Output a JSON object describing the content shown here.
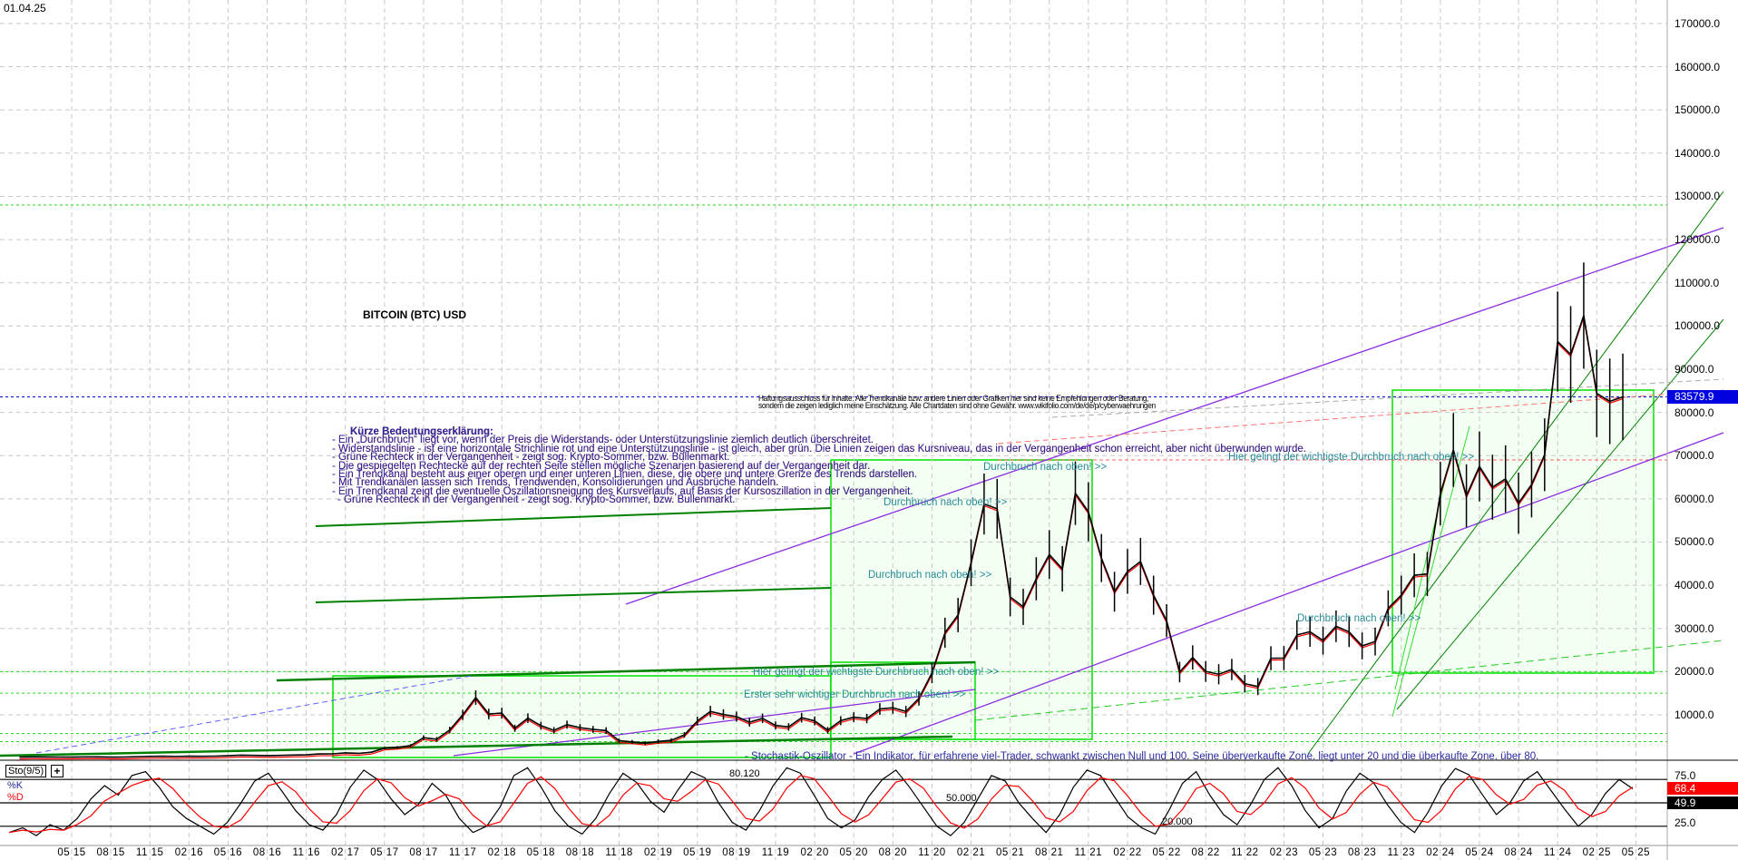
{
  "header": {
    "date": "01.04.25",
    "title": "BITCOIN (BTC) USD"
  },
  "legend": {
    "title": "Kürze Bedeutungserklärung:",
    "lines": [
      "- Ein „Durchbruch“ liegt vor, wenn der Preis die Widerstands- oder Unterstützungslinie ziemlich deutlich überschreitet.",
      "- Widerstandslinie - ist eine horizontale Strichlinie rot und eine Unterstützungslinie - ist gleich, aber grün. Die Linien zeigen das Kursniveau, das in der Vergangenheit schon erreicht, aber nicht überwunden wurde.",
      "- Grüne Rechteck in der Vergangenheit - zeigt sog. Krypto-Sommer, bzw. Bullenmarkt.",
      "- Die gespiegelten Rechtecke auf der rechten Seite stellen mögliche Szenarien basierend auf der Vergangenheit dar.",
      "- Ein Trendkanal besteht aus einer oberen und einer unteren Linien, diese, die obere und untere Grenze des Trends darstellen.",
      "- Mit Trendkanälen lassen sich Trends, Trendwenden, Konsolidierungen und Ausbrüche handeln.",
      "- Ein Trendkanal zeigt die eventuelle Oszillationsneigung des Kursverlaufs, auf Basis der Kursoszillation in der Vergangenheit.",
      "- Grüne Rechteck in der Vergangenheit - zeigt sog. Krypto-Sommer, bzw. Bullenmarkt."
    ]
  },
  "disclaimer": [
    "Haftungsausschluss für Inhalte: Alle Trendkanäle bzw. andere Linien oder Grafiken hier sind keine Empfehlungen oder Beratung,",
    "sondern die zeigen lediglich meine  Einschätzung. Alle Chartdaten sind ohne Gewähr.  www.wikifolio.com/de/de/p/cyberwaehrungen"
  ],
  "annotations": {
    "breakout": "Durchbruch nach oben! >>",
    "key_breakout": "Hier gelingt der wichtigste Durchbruch nach oben! >>",
    "first_breakout": "Erster sehr wichtiger Durchbruch nach oben! >>"
  },
  "stochastic": {
    "name": "Sto(9/5)",
    "plus": "+",
    "k_label": "%K",
    "d_label": "%D",
    "description": "- Stochastik-Oszillator - Ein Indikator, für erfahrene viel-Trader, schwankt zwischen Null und 100. Seine überverkaufte Zone, liegt unter 20 und die überkaufte Zone, über 80.",
    "level_high": "80.120",
    "level_mid": "50.000",
    "level_low": "20.000",
    "axis_labels": [
      "75.0",
      "25.0"
    ],
    "last_k": "68.4",
    "last_d": "49.9",
    "colors": {
      "k": "#000000",
      "d": "#ff0000"
    },
    "k_values": [
      12,
      18,
      8,
      22,
      15,
      30,
      55,
      72,
      60,
      85,
      90,
      70,
      45,
      30,
      20,
      10,
      25,
      50,
      78,
      88,
      65,
      40,
      22,
      15,
      35,
      70,
      92,
      80,
      55,
      35,
      48,
      75,
      60,
      30,
      12,
      20,
      45,
      85,
      95,
      70,
      40,
      20,
      10,
      30,
      62,
      88,
      76,
      52,
      38,
      66,
      90,
      82,
      50,
      25,
      15,
      40,
      72,
      95,
      88,
      60,
      30,
      18,
      28,
      58,
      80,
      92,
      70,
      45,
      20,
      8,
      25,
      55,
      85,
      78,
      50,
      30,
      12,
      35,
      70,
      92,
      85,
      58,
      32,
      18,
      10,
      40,
      75,
      90,
      60,
      35,
      22,
      48,
      80,
      95,
      72,
      40,
      18,
      30,
      65,
      88,
      76,
      48,
      25,
      12,
      38,
      72,
      94,
      86,
      60,
      35,
      50,
      78,
      90,
      66,
      42,
      20,
      35,
      62,
      80,
      68
    ]
  },
  "axis": {
    "last_price": "83579.9",
    "y_labels": [
      "10000.0",
      "20000.0",
      "30000.0",
      "40000.0",
      "50000.0",
      "60000.0",
      "70000.0",
      "80000.0",
      "90000.0",
      "100000.0",
      "110000.0",
      "120000.0",
      "130000.0",
      "140000.0",
      "150000.0",
      "160000.0",
      "170000.0"
    ],
    "x_labels": [
      "05 15",
      "08 15",
      "11 15",
      "02 16",
      "05 16",
      "08 16",
      "11 16",
      "02 17",
      "05 17",
      "08 17",
      "11 17",
      "02 18",
      "05 18",
      "08 18",
      "11 18",
      "02 19",
      "05 19",
      "08 19",
      "11 19",
      "02 20",
      "05 20",
      "08 20",
      "11 20",
      "02 21",
      "05 21",
      "08 21",
      "11 21",
      "02 22",
      "05 22",
      "08 22",
      "11 22",
      "02 23",
      "05 23",
      "08 23",
      "11 23",
      "02 24",
      "05 24",
      "08 24",
      "11 24",
      "02 25",
      "05 25"
    ]
  },
  "chart_data": {
    "type": "line",
    "title": "BITCOIN (BTC) USD",
    "x_start": "2015-01",
    "x_step": "month",
    "ylim": [
      0,
      175000
    ],
    "grid": true,
    "colors": {
      "price": "#000000",
      "price_down": "#ff0000",
      "last_price": "#0000e0",
      "channel": "#8a2be2",
      "trend": "#008000",
      "bull_box": "#00e000"
    },
    "values": [
      218,
      254,
      244,
      236,
      230,
      263,
      284,
      230,
      236,
      314,
      378,
      430,
      369,
      437,
      416,
      448,
      531,
      673,
      624,
      575,
      609,
      698,
      742,
      964,
      970,
      1190,
      1080,
      1350,
      2300,
      2480,
      2875,
      4700,
      4340,
      6470,
      10000,
      14000,
      10200,
      10400,
      6900,
      9240,
      7500,
      6400,
      7730,
      7030,
      6630,
      6370,
      4020,
      3740,
      3460,
      3850,
      4100,
      5350,
      8570,
      10800,
      10080,
      9600,
      8300,
      9200,
      7550,
      7200,
      9350,
      8600,
      6440,
      8660,
      9460,
      9140,
      11350,
      11650,
      10780,
      13800,
      19700,
      29000,
      33100,
      45200,
      58800,
      57700,
      37300,
      35000,
      41500,
      47100,
      43800,
      61300,
      57000,
      46300,
      38500,
      43200,
      45500,
      37700,
      31800,
      19900,
      23300,
      20050,
      19400,
      20500,
      17200,
      16550,
      23100,
      23150,
      28500,
      29250,
      27200,
      30500,
      29200,
      25950,
      26970,
      34650,
      37700,
      42300,
      42600,
      61200,
      71300,
      60700,
      67500,
      62700,
      64600,
      59000,
      63300,
      70200,
      96400,
      93400,
      102400,
      84400,
      82550,
      83580
    ],
    "horizontal_levels": {
      "support": [
        128000,
        20000,
        15000,
        5700,
        3800
      ],
      "resistance": [
        69000
      ],
      "last": 83579.9
    }
  }
}
